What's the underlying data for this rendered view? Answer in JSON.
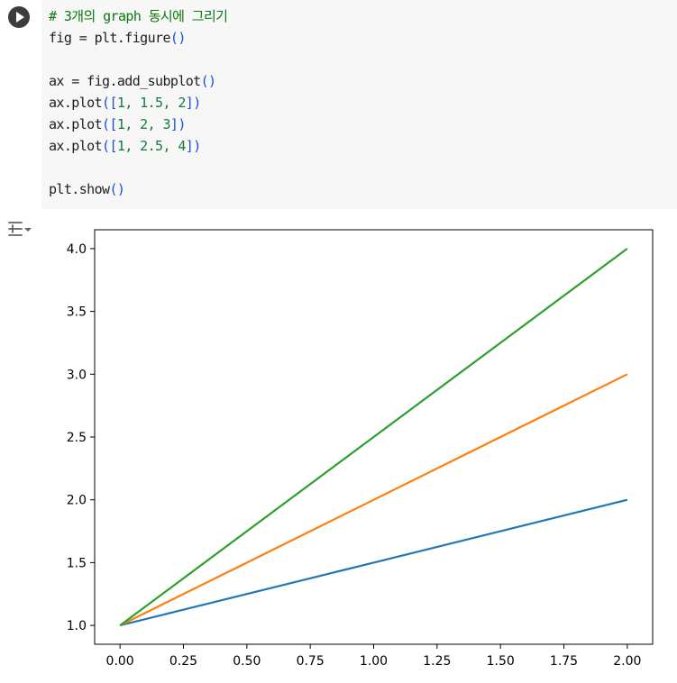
{
  "cell": {
    "code_lines": [
      [
        {
          "t": "# 3개의 graph 동시에 그리기",
          "c": "tok-comment"
        }
      ],
      [
        {
          "t": "fig = plt.figure",
          "c": ""
        },
        {
          "t": "()",
          "c": "tok-paren"
        }
      ],
      [],
      [
        {
          "t": "ax = fig.add_subplot",
          "c": ""
        },
        {
          "t": "()",
          "c": "tok-paren"
        }
      ],
      [
        {
          "t": "ax.plot",
          "c": ""
        },
        {
          "t": "([",
          "c": "tok-paren"
        },
        {
          "t": "1, 1.5, 2",
          "c": "tok-num"
        },
        {
          "t": "])",
          "c": "tok-paren"
        }
      ],
      [
        {
          "t": "ax.plot",
          "c": ""
        },
        {
          "t": "([",
          "c": "tok-paren"
        },
        {
          "t": "1, 2, 3",
          "c": "tok-num"
        },
        {
          "t": "])",
          "c": "tok-paren"
        }
      ],
      [
        {
          "t": "ax.plot",
          "c": ""
        },
        {
          "t": "([",
          "c": "tok-paren"
        },
        {
          "t": "1, 2.5, 4",
          "c": "tok-num"
        },
        {
          "t": "])",
          "c": "tok-paren"
        }
      ],
      [],
      [
        {
          "t": "plt.show",
          "c": ""
        },
        {
          "t": "()",
          "c": "tok-paren"
        }
      ]
    ]
  },
  "icons": {
    "run": "play-circle-icon",
    "output_toggle": "output-settings-icon"
  },
  "chart_data": {
    "type": "line",
    "title": "",
    "xlabel": "",
    "ylabel": "",
    "xlim": [
      -0.1,
      2.1
    ],
    "ylim": [
      0.85,
      4.15
    ],
    "xticks": [
      "0.00",
      "0.25",
      "0.50",
      "0.75",
      "1.00",
      "1.25",
      "1.50",
      "1.75",
      "2.00"
    ],
    "yticks": [
      "1.0",
      "1.5",
      "2.0",
      "2.5",
      "3.0",
      "3.5",
      "4.0"
    ],
    "x": [
      0,
      1,
      2
    ],
    "series": [
      {
        "values": [
          1,
          1.5,
          2
        ],
        "color": "#1f77b4"
      },
      {
        "values": [
          1,
          2,
          3
        ],
        "color": "#ff7f0e"
      },
      {
        "values": [
          1,
          2.5,
          4
        ],
        "color": "#2ca02c"
      }
    ],
    "grid": false,
    "legend": "none"
  }
}
